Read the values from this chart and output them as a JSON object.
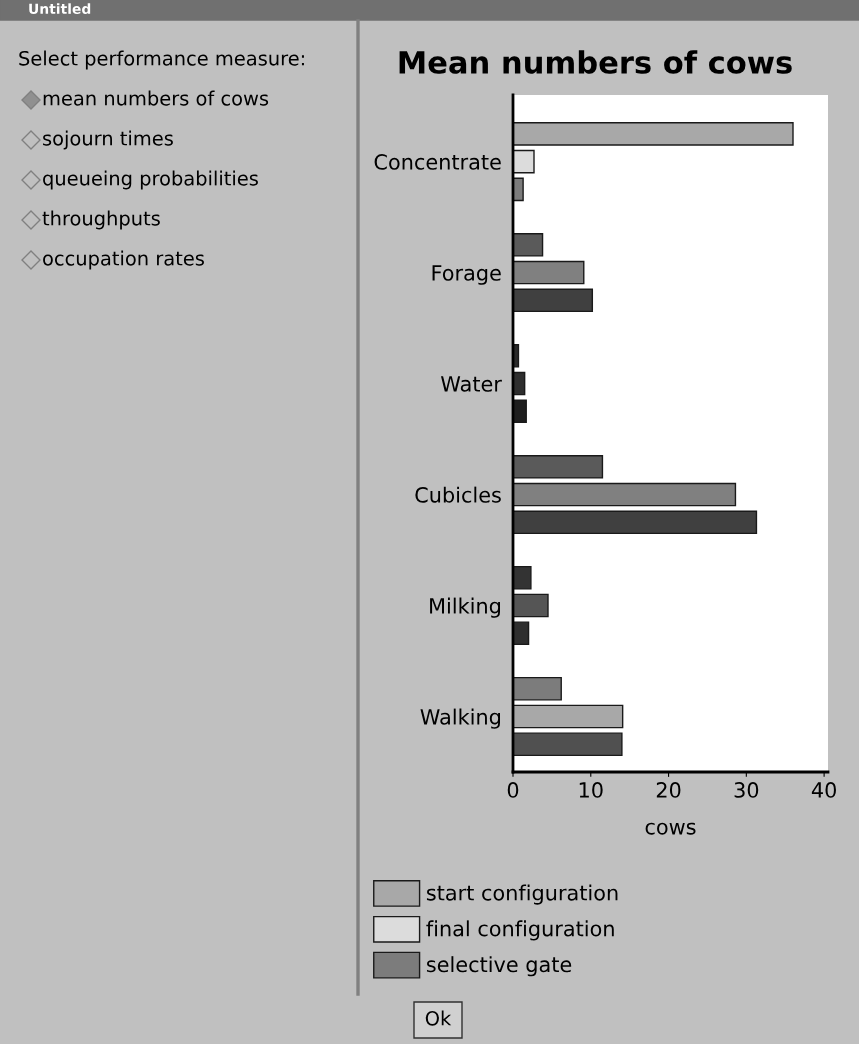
{
  "chart_data": {
    "type": "bar",
    "orientation": "horizontal",
    "title": "Mean numbers of cows",
    "xlabel": "cows",
    "categories": [
      "Concentrate",
      "Forage",
      "Water",
      "Cubicles",
      "Milking",
      "Walking"
    ],
    "series": [
      {
        "name": "start configuration",
        "color": "#a8a8a8",
        "colors": [
          "#a8a8a8",
          "#5a5a5a",
          "#2a2a2a",
          "#5a5a5a",
          "#333333",
          "#7c7c7c"
        ],
        "values": [
          36.0,
          3.8,
          0.7,
          11.5,
          2.3,
          6.2
        ]
      },
      {
        "name": "final configuration",
        "color": "#dcdcdc",
        "colors": [
          "#dcdcdc",
          "#808080",
          "#2e2e2e",
          "#808080",
          "#555555",
          "#a8a8a8"
        ],
        "values": [
          2.7,
          9.1,
          1.5,
          28.6,
          4.5,
          14.1
        ]
      },
      {
        "name": "selective gate",
        "color": "#7c7c7c",
        "colors": [
          "#7c7c7c",
          "#404040",
          "#1e1e1e",
          "#404040",
          "#2e2e2e",
          "#505050"
        ],
        "values": [
          1.3,
          10.2,
          1.7,
          31.3,
          2.0,
          14.0
        ]
      }
    ],
    "xlim": [
      0,
      40.5
    ],
    "xticks": [
      0,
      10,
      20,
      30,
      40
    ],
    "grid": false,
    "legend": "bottom",
    "annotations": [
      "Untitled",
      "Select performance measure:",
      "mean numbers of cows",
      "sojourn times",
      "queueing probabilities",
      "throughputs",
      "occupation rates",
      "Ok"
    ]
  }
}
